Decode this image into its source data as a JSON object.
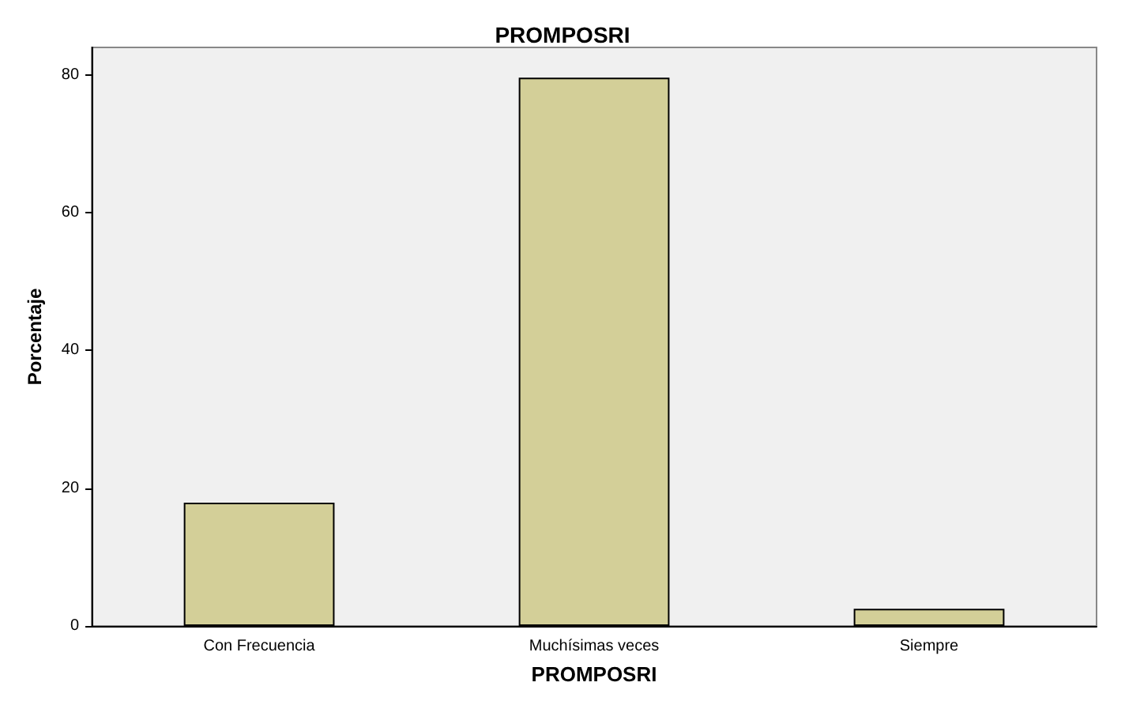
{
  "chart_data": {
    "type": "bar",
    "title": "PROMPOSRI",
    "xlabel": "PROMPOSRI",
    "ylabel": "Porcentaje",
    "categories": [
      "Con Frecuencia",
      "Muchísimas veces",
      "Siempre"
    ],
    "values": [
      17.9,
      79.6,
      2.5
    ],
    "color": "#d3cf98",
    "ylim": [
      0,
      84
    ],
    "yticks": [
      0,
      20,
      40,
      60,
      80
    ],
    "grid": false
  }
}
